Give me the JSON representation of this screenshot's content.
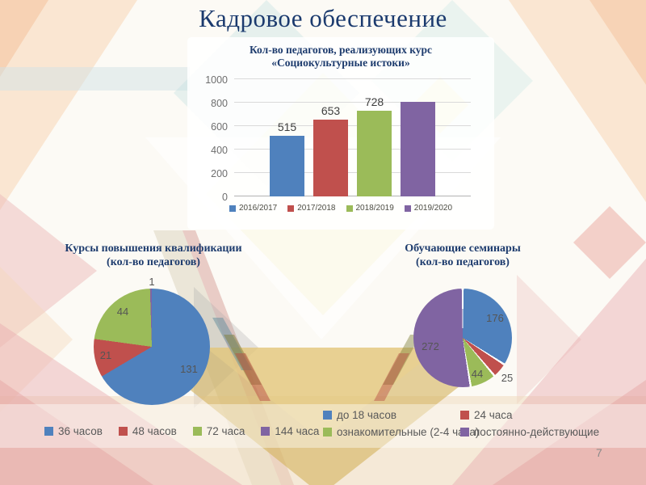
{
  "slide": {
    "title": "Кадровое обеспечение",
    "page_number": "7"
  },
  "colors": {
    "accent_blue": "#4F81BD",
    "accent_red": "#C0504D",
    "accent_green": "#9BBB59",
    "accent_purple": "#8064A2",
    "title_navy": "#1E3C6E"
  },
  "chart_data": [
    {
      "type": "bar",
      "title_line1": "Кол-во педагогов, реализующих курс",
      "title_line2": "«Социокультурные истоки»",
      "categories": [
        "2016/2017",
        "2017/2018",
        "2018/2019",
        "2019/2020"
      ],
      "values": [
        515,
        653,
        728,
        810
      ],
      "value_labels": [
        "515",
        "653",
        "728",
        ""
      ],
      "colors": [
        "#4F81BD",
        "#C0504D",
        "#9BBB59",
        "#8064A2"
      ],
      "ylim": [
        0,
        1000
      ],
      "yticks": [
        0,
        200,
        400,
        600,
        800,
        1000
      ],
      "grid": true,
      "legend_position": "bottom"
    },
    {
      "type": "pie",
      "title_line1": "Курсы повышения квалификации",
      "title_line2": "(кол-во педагогов)",
      "labels": [
        "36 часов",
        "48 часов",
        "72 часа",
        "144 часа"
      ],
      "values": [
        131,
        21,
        44,
        1
      ],
      "colors": [
        "#4F81BD",
        "#C0504D",
        "#9BBB59",
        "#8064A2"
      ],
      "legend_position": "bottom"
    },
    {
      "type": "pie",
      "title_line1": "Обучающие семинары",
      "title_line2": "(кол-во педагогов)",
      "labels": [
        "до 18 часов",
        "24 часа",
        "ознакомительные (2-4 часа)",
        "постоянно-действующие"
      ],
      "values": [
        176,
        25,
        44,
        272
      ],
      "colors": [
        "#4F81BD",
        "#C0504D",
        "#9BBB59",
        "#8064A2"
      ],
      "legend_position": "bottom"
    }
  ]
}
